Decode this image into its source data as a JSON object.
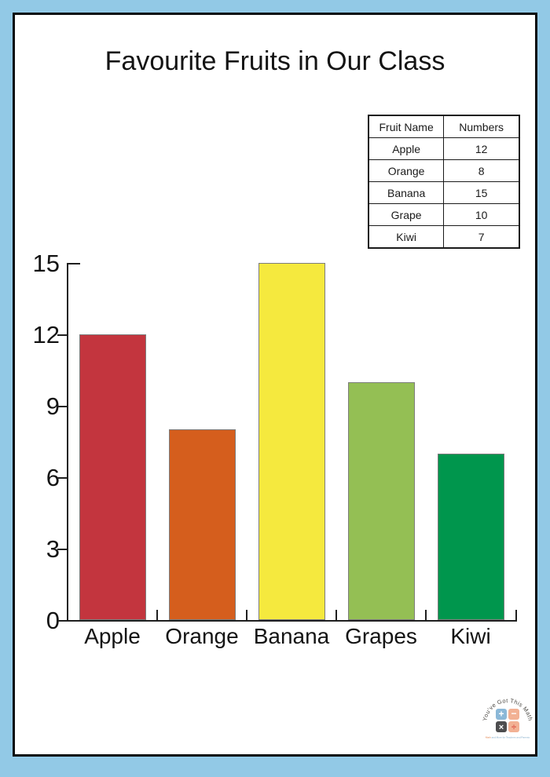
{
  "title": "Favourite Fruits in Our Class",
  "frame": {
    "border_color": "#92c9e6",
    "inner_border_color": "#0a0a0a",
    "sheet_color": "#ffffff"
  },
  "table": {
    "headers": [
      "Fruit Name",
      "Numbers"
    ],
    "rows": [
      [
        "Apple",
        "12"
      ],
      [
        "Orange",
        "8"
      ],
      [
        "Banana",
        "15"
      ],
      [
        "Grape",
        "10"
      ],
      [
        "Kiwi",
        "7"
      ]
    ]
  },
  "chart_data": {
    "type": "bar",
    "title": "Favourite Fruits in Our Class",
    "categories": [
      "Apple",
      "Orange",
      "Banana",
      "Grapes",
      "Kiwi"
    ],
    "values": [
      12,
      8,
      15,
      10,
      7
    ],
    "bar_colors": [
      "#c3353e",
      "#d55e1d",
      "#f5e93e",
      "#94bf54",
      "#00964d"
    ],
    "bar_edge_color": "#7d7d7d",
    "xlabel": "",
    "ylabel": "",
    "yticks": [
      0,
      3,
      6,
      9,
      12,
      15
    ],
    "ylim": [
      0,
      15
    ],
    "grid": false,
    "legend": "none",
    "axis_color": "#1f1f1f"
  },
  "logo": {
    "arc_text": "You've Got This Math",
    "symbols": [
      "+",
      "−",
      "×",
      "÷"
    ],
    "tile_colors": [
      "#8bb8d8",
      "#f2b194",
      "#4d4d4f",
      "#f2b194"
    ],
    "divide_color": "#dd5446",
    "tagline_accent": "Math",
    "tagline_rest": " and More for Teachers and Parents"
  }
}
